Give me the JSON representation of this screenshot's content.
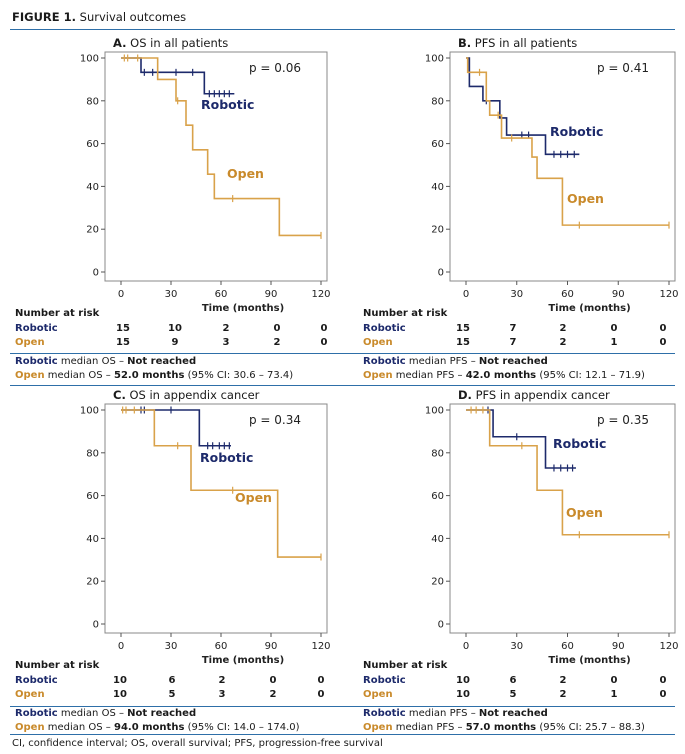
{
  "figure": {
    "label": "FIGURE 1.",
    "title": "Survival outcomes",
    "footnote": "CI, confidence interval; OS, overall survival; PFS, progression-free survival"
  },
  "colors": {
    "robotic": "#1d2a6b",
    "open": "#d9a24a",
    "rule": "#2e6fa8"
  },
  "risk_table": {
    "title": "Number at risk",
    "robotic_label": "Robotic",
    "open_label": "Open"
  },
  "panels": [
    {
      "letter": "A.",
      "title": "OS in all patients",
      "pvalue": "p = 0.06",
      "robotic_label": "Robotic",
      "open_label": "Open",
      "xlabel": "Time (months)",
      "risk": {
        "robotic": [
          "15",
          "10",
          "2",
          "0",
          "0"
        ],
        "open": [
          "15",
          "9",
          "3",
          "2",
          "0"
        ]
      },
      "median_robotic": {
        "group": "Robotic",
        "text": " median OS – ",
        "value": "Not reached",
        "ci": ""
      },
      "median_open": {
        "group": "Open",
        "text": " median OS – ",
        "value": "52.0 months",
        "ci": " (95% CI: 30.6 – 73.4)"
      }
    },
    {
      "letter": "B.",
      "title": "PFS in all patients",
      "pvalue": "p = 0.41",
      "robotic_label": "Robotic",
      "open_label": "Open",
      "xlabel": "Time (months)",
      "risk": {
        "robotic": [
          "15",
          "7",
          "2",
          "0",
          "0"
        ],
        "open": [
          "15",
          "7",
          "2",
          "1",
          "0"
        ]
      },
      "median_robotic": {
        "group": "Robotic",
        "text": " median PFS – ",
        "value": "Not reached",
        "ci": ""
      },
      "median_open": {
        "group": "Open",
        "text": " median PFS – ",
        "value": "42.0 months",
        "ci": " (95% CI: 12.1 – 71.9)"
      }
    },
    {
      "letter": "C.",
      "title": "OS in appendix cancer",
      "pvalue": "p = 0.34",
      "robotic_label": "Robotic",
      "open_label": "Open",
      "xlabel": "Time (months)",
      "risk": {
        "robotic": [
          "10",
          "6",
          "2",
          "0",
          "0"
        ],
        "open": [
          "10",
          "5",
          "3",
          "2",
          "0"
        ]
      },
      "median_robotic": {
        "group": "Robotic",
        "text": " median OS – ",
        "value": "Not reached",
        "ci": ""
      },
      "median_open": {
        "group": "Open",
        "text": " median OS – ",
        "value": "94.0 months",
        "ci": " (95% CI: 14.0 – 174.0)"
      }
    },
    {
      "letter": "D.",
      "title": "PFS in appendix cancer",
      "pvalue": "p = 0.35",
      "robotic_label": "Robotic",
      "open_label": "Open",
      "xlabel": "Time (months)",
      "risk": {
        "robotic": [
          "10",
          "6",
          "2",
          "0",
          "0"
        ],
        "open": [
          "10",
          "5",
          "2",
          "1",
          "0"
        ]
      },
      "median_robotic": {
        "group": "Robotic",
        "text": " median PFS – ",
        "value": "Not reached",
        "ci": ""
      },
      "median_open": {
        "group": "Open",
        "text": " median PFS – ",
        "value": "57.0 months",
        "ci": " (95% CI: 25.7 – 88.3)"
      }
    }
  ],
  "chart_data": [
    {
      "type": "line",
      "subtype": "kaplan-meier",
      "title": "A. OS in all patients",
      "xlabel": "Time (months)",
      "ylabel": "",
      "xlim": [
        0,
        120
      ],
      "ylim": [
        0,
        100
      ],
      "xticks": [
        0,
        30,
        60,
        90,
        120
      ],
      "yticks": [
        0,
        20,
        40,
        60,
        80,
        100
      ],
      "series": [
        {
          "name": "Robotic",
          "steps": [
            [
              0,
              100
            ],
            [
              12,
              93.3
            ],
            [
              50,
              83.3
            ],
            [
              68,
              83.3
            ]
          ],
          "censor": [
            [
              14,
              93.3
            ],
            [
              19,
              93.3
            ],
            [
              33,
              93.3
            ],
            [
              43,
              93.3
            ],
            [
              53,
              83.3
            ],
            [
              56,
              83.3
            ],
            [
              59,
              83.3
            ],
            [
              62,
              83.3
            ],
            [
              65,
              83.3
            ]
          ]
        },
        {
          "name": "Open",
          "steps": [
            [
              0,
              100
            ],
            [
              22,
              90
            ],
            [
              33,
              80
            ],
            [
              39,
              68.6
            ],
            [
              43,
              57.1
            ],
            [
              52,
              45.7
            ],
            [
              56,
              34.3
            ],
            [
              95,
              17.1
            ],
            [
              120,
              17.1
            ]
          ],
          "censor": [
            [
              2,
              100
            ],
            [
              4,
              100
            ],
            [
              10,
              100
            ],
            [
              34,
              80
            ],
            [
              67,
              34.3
            ],
            [
              120,
              17.1
            ]
          ]
        }
      ]
    },
    {
      "type": "line",
      "subtype": "kaplan-meier",
      "title": "B. PFS in all patients",
      "xlabel": "Time (months)",
      "ylabel": "",
      "xlim": [
        0,
        120
      ],
      "ylim": [
        0,
        100
      ],
      "xticks": [
        0,
        30,
        60,
        90,
        120
      ],
      "yticks": [
        0,
        20,
        40,
        60,
        80,
        100
      ],
      "series": [
        {
          "name": "Robotic",
          "steps": [
            [
              0,
              100
            ],
            [
              2,
              86.7
            ],
            [
              10,
              80
            ],
            [
              20,
              72
            ],
            [
              24,
              64
            ],
            [
              47,
              55
            ],
            [
              67,
              55
            ]
          ],
          "censor": [
            [
              12,
              80
            ],
            [
              33,
              64
            ],
            [
              37,
              64
            ],
            [
              52,
              55
            ],
            [
              56,
              55
            ],
            [
              60,
              55
            ],
            [
              64,
              55
            ]
          ]
        },
        {
          "name": "Open",
          "steps": [
            [
              0,
              100
            ],
            [
              1,
              93.3
            ],
            [
              12,
              80
            ],
            [
              14,
              73.3
            ],
            [
              21,
              62.6
            ],
            [
              39,
              53.7
            ],
            [
              42,
              43.8
            ],
            [
              57,
              21.9
            ],
            [
              120,
              21.9
            ]
          ],
          "censor": [
            [
              8,
              93.3
            ],
            [
              19,
              73.3
            ],
            [
              27,
              62.6
            ],
            [
              67,
              21.9
            ],
            [
              120,
              21.9
            ]
          ]
        }
      ]
    },
    {
      "type": "line",
      "subtype": "kaplan-meier",
      "title": "C. OS in appendix cancer",
      "xlabel": "Time (months)",
      "ylabel": "",
      "xlim": [
        0,
        120
      ],
      "ylim": [
        0,
        100
      ],
      "xticks": [
        0,
        30,
        60,
        90,
        120
      ],
      "yticks": [
        0,
        20,
        40,
        60,
        80,
        100
      ],
      "series": [
        {
          "name": "Robotic",
          "steps": [
            [
              0,
              100
            ],
            [
              47,
              83.3
            ],
            [
              66,
              83.3
            ]
          ],
          "censor": [
            [
              12,
              100
            ],
            [
              14,
              100
            ],
            [
              30,
              100
            ],
            [
              52,
              83.3
            ],
            [
              55,
              83.3
            ],
            [
              59,
              83.3
            ],
            [
              62,
              83.3
            ],
            [
              65,
              83.3
            ]
          ]
        },
        {
          "name": "Open",
          "steps": [
            [
              0,
              100
            ],
            [
              20,
              83.3
            ],
            [
              42,
              62.5
            ],
            [
              94,
              31.3
            ],
            [
              120,
              31.3
            ]
          ],
          "censor": [
            [
              1,
              100
            ],
            [
              3,
              100
            ],
            [
              8,
              100
            ],
            [
              34,
              83.3
            ],
            [
              67,
              62.5
            ],
            [
              120,
              31.3
            ]
          ]
        }
      ]
    },
    {
      "type": "line",
      "subtype": "kaplan-meier",
      "title": "D. PFS in appendix cancer",
      "xlabel": "Time (months)",
      "ylabel": "",
      "xlim": [
        0,
        120
      ],
      "ylim": [
        0,
        100
      ],
      "xticks": [
        0,
        30,
        60,
        90,
        120
      ],
      "yticks": [
        0,
        20,
        40,
        60,
        80,
        100
      ],
      "series": [
        {
          "name": "Robotic",
          "steps": [
            [
              0,
              100
            ],
            [
              16,
              87.5
            ],
            [
              47,
              72.9
            ],
            [
              65,
              72.9
            ]
          ],
          "censor": [
            [
              13,
              100
            ],
            [
              30,
              87.5
            ],
            [
              52,
              72.9
            ],
            [
              56,
              72.9
            ],
            [
              60,
              72.9
            ],
            [
              63,
              72.9
            ]
          ]
        },
        {
          "name": "Open",
          "steps": [
            [
              0,
              100
            ],
            [
              14,
              83.3
            ],
            [
              42,
              62.5
            ],
            [
              57,
              41.7
            ],
            [
              120,
              41.7
            ]
          ],
          "censor": [
            [
              3,
              100
            ],
            [
              6,
              100
            ],
            [
              10,
              100
            ],
            [
              33,
              83.3
            ],
            [
              67,
              41.7
            ],
            [
              120,
              41.7
            ]
          ]
        }
      ]
    }
  ]
}
